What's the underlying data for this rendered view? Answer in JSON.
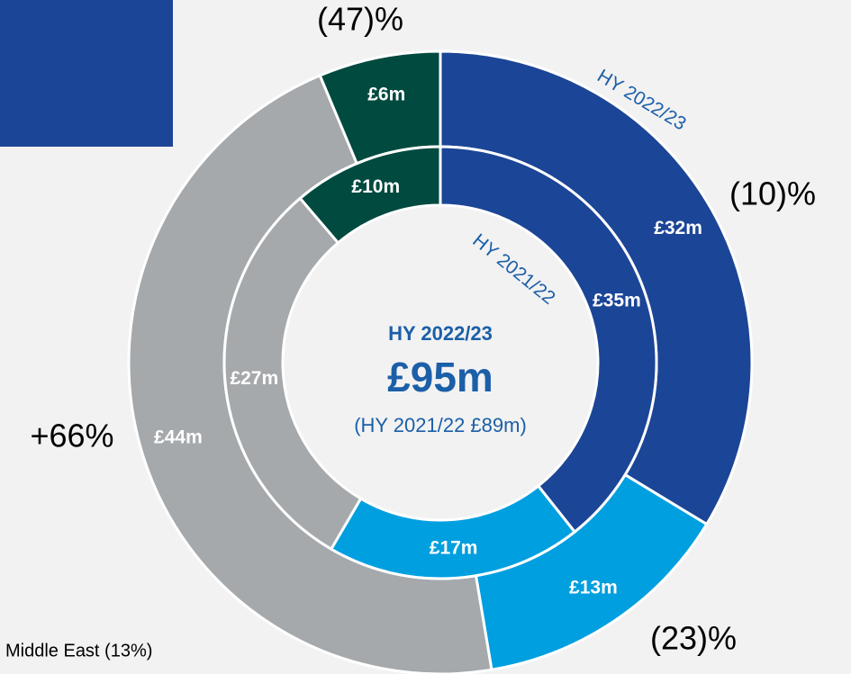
{
  "chart_data": {
    "type": "donut",
    "center_title": "HY 2022/23",
    "center_value": "£95m",
    "center_subtitle": "(HY 2021/22 £89m)",
    "colors": [
      "#1b4596",
      "#009fdf",
      "#a5a9ac",
      "#004a3f"
    ],
    "rings": [
      {
        "name": "HY 2022/23",
        "values": [
          32,
          13,
          44,
          6
        ],
        "value_labels": [
          "£32m",
          "£13m",
          "£44m",
          "£6m"
        ]
      },
      {
        "name": "HY 2021/22",
        "values": [
          35,
          17,
          27,
          10
        ],
        "value_labels": [
          "£35m",
          "£17m",
          "£27m",
          "£10m"
        ]
      }
    ],
    "changes": [
      "(10)%",
      "(23)%",
      "+66%",
      "(47)%"
    ],
    "annotation": "Middle East (13%)"
  }
}
